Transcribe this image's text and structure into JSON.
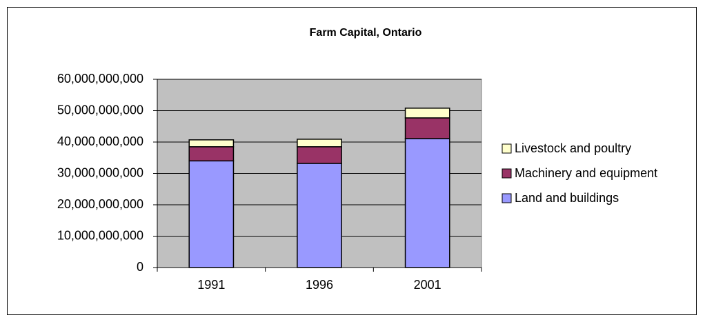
{
  "chart_data": {
    "type": "stacked_bar",
    "title": "Farm Capital, Ontario",
    "categories": [
      "1991",
      "1996",
      "2001"
    ],
    "series": [
      {
        "name": "Land and buildings",
        "color": "#9999ff",
        "values": [
          34000000000,
          33200000000,
          41100000000
        ]
      },
      {
        "name": "Machinery and equipment",
        "color": "#993366",
        "values": [
          4500000000,
          5300000000,
          6600000000
        ]
      },
      {
        "name": "Livestock and poultry",
        "color": "#ffffcc",
        "values": [
          2200000000,
          2400000000,
          3100000000
        ]
      }
    ],
    "ylim": [
      0,
      60000000000
    ],
    "yticks": [
      0,
      {
        "value": 10000000000,
        "label": "10,000,000,000"
      },
      {
        "value": 20000000000,
        "label": "20,000,000,000"
      },
      {
        "value": 30000000000,
        "label": "30,000,000,000"
      },
      {
        "value": 40000000000,
        "label": "40,000,000,000"
      },
      {
        "value": 50000000000,
        "label": "50,000,000,000"
      },
      {
        "value": 60000000000,
        "label": "60,000,000,000"
      }
    ],
    "grid": true,
    "legend": "right",
    "plot_background": "#c0c0c0"
  }
}
